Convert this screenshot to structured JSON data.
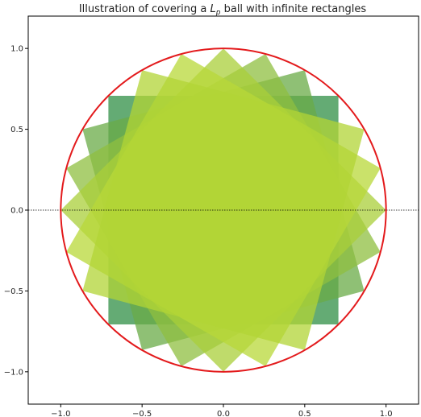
{
  "chart_data": {
    "type": "scatter",
    "title": "Illustration of covering a L_p ball with infinite rectangles",
    "title_parts": {
      "before": "Illustration of covering a ",
      "L": "L",
      "p": "p",
      "after": " ball with infinite rectangles"
    },
    "xlabel": "",
    "ylabel": "",
    "xlim": [
      -1.2,
      1.2
    ],
    "ylim": [
      -1.2,
      1.2
    ],
    "grid": false,
    "xticks": [
      {
        "value": -1.0,
        "label": "−1.0"
      },
      {
        "value": -0.5,
        "label": "−0.5"
      },
      {
        "value": 0.0,
        "label": "0.0"
      },
      {
        "value": 0.5,
        "label": "0.5"
      },
      {
        "value": 1.0,
        "label": "1.0"
      }
    ],
    "yticks": [
      {
        "value": -1.0,
        "label": "−1.0"
      },
      {
        "value": -0.5,
        "label": "−0.5"
      },
      {
        "value": 0.0,
        "label": "0.0"
      },
      {
        "value": 0.5,
        "label": "0.5"
      },
      {
        "value": 1.0,
        "label": "1.0"
      }
    ],
    "circle": {
      "center": [
        0,
        0
      ],
      "radius": 1.0,
      "color": "#e31a1c"
    },
    "baseline": {
      "y": 0.0,
      "style": "dotted",
      "color": "#000000"
    },
    "squares": [
      {
        "rotation_deg": 0,
        "half_side": 0.7071,
        "color": "#3d9651",
        "opacity": 0.8
      },
      {
        "rotation_deg": 15,
        "half_side": 0.7071,
        "color": "#6aab47",
        "opacity": 0.75
      },
      {
        "rotation_deg": 30,
        "half_side": 0.7071,
        "color": "#8fbf40",
        "opacity": 0.75
      },
      {
        "rotation_deg": 45,
        "half_side": 0.7071,
        "color": "#a9cf3a",
        "opacity": 0.75
      },
      {
        "rotation_deg": 60,
        "half_side": 0.7071,
        "color": "#b8d838",
        "opacity": 0.75
      },
      {
        "rotation_deg": 75,
        "half_side": 0.7071,
        "color": "#b2d436",
        "opacity": 0.75
      }
    ]
  }
}
